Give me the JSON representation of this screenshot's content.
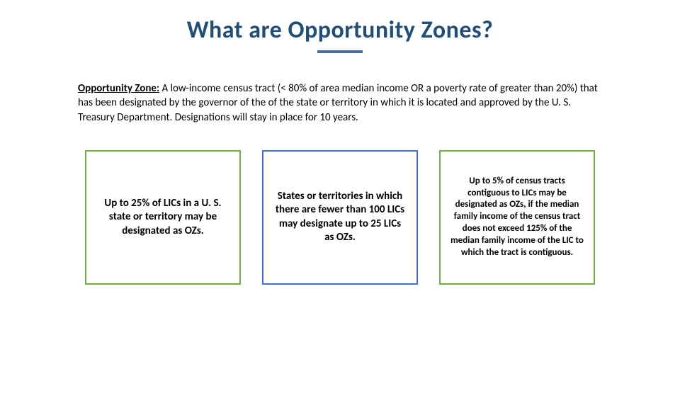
{
  "title": {
    "text": "What are Opportunity Zones?",
    "color": "#1f4e79",
    "fontsize": 34,
    "underline_width": 64,
    "underline_height": 4,
    "underline_color": "#466ba5",
    "margin_top": 22
  },
  "definition": {
    "label": "Opportunity Zone:",
    "body": " A low-income census tract (< 80% of area median income OR a poverty rate of greater than 20%) that has been designated by the governor of the of the state or territory in which it is located and approved by the U. S. Treasury Department. Designations will stay in place for 10 years.",
    "fontsize": 15,
    "text_color": "#000000"
  },
  "boxes": [
    {
      "text": "Up to 25% of LICs in a U. S. state or territory may be designated as OZs.",
      "border_color": "#70ad47",
      "text_color": "#000000",
      "fontsize": 15
    },
    {
      "text": "States or territories in which there are fewer than 100 LICs may designate up to 25 LICs as OZs.",
      "border_color": "#4472c4",
      "text_color": "#000000",
      "fontsize": 15
    },
    {
      "text": "Up to 5% of census tracts contiguous to LICs may be designated as OZs, if the median family income of the census tract does not exceed 125% of the median family income of the LIC to which the tract is contiguous.",
      "border_color": "#70ad47",
      "text_color": "#000000",
      "fontsize": 13
    }
  ],
  "background_color": "#ffffff"
}
